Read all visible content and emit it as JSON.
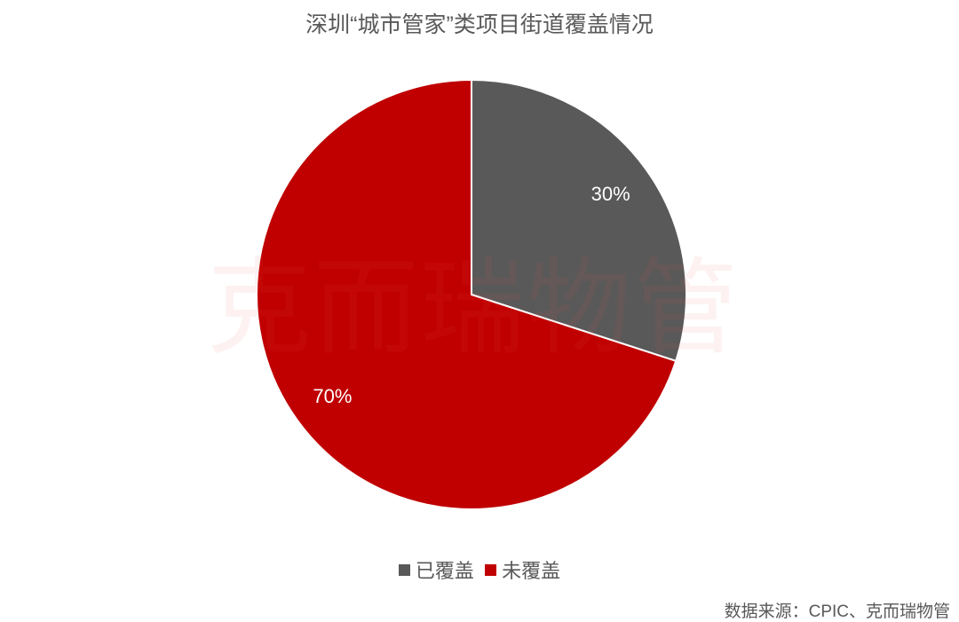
{
  "chart_data": {
    "type": "pie",
    "title": "深圳“城市管家”类项目街道覆盖情况",
    "slices": [
      {
        "label": "已覆盖",
        "value": 30,
        "data_label": "30%",
        "color": "#595959"
      },
      {
        "label": "未覆盖",
        "value": 70,
        "data_label": "70%",
        "color": "#C00000"
      }
    ],
    "start": "top",
    "direction": "clockwise",
    "legend_placement": "bottom",
    "source": "数据来源：CPIC、克而瑞物管",
    "watermark": "克而瑞物管"
  }
}
